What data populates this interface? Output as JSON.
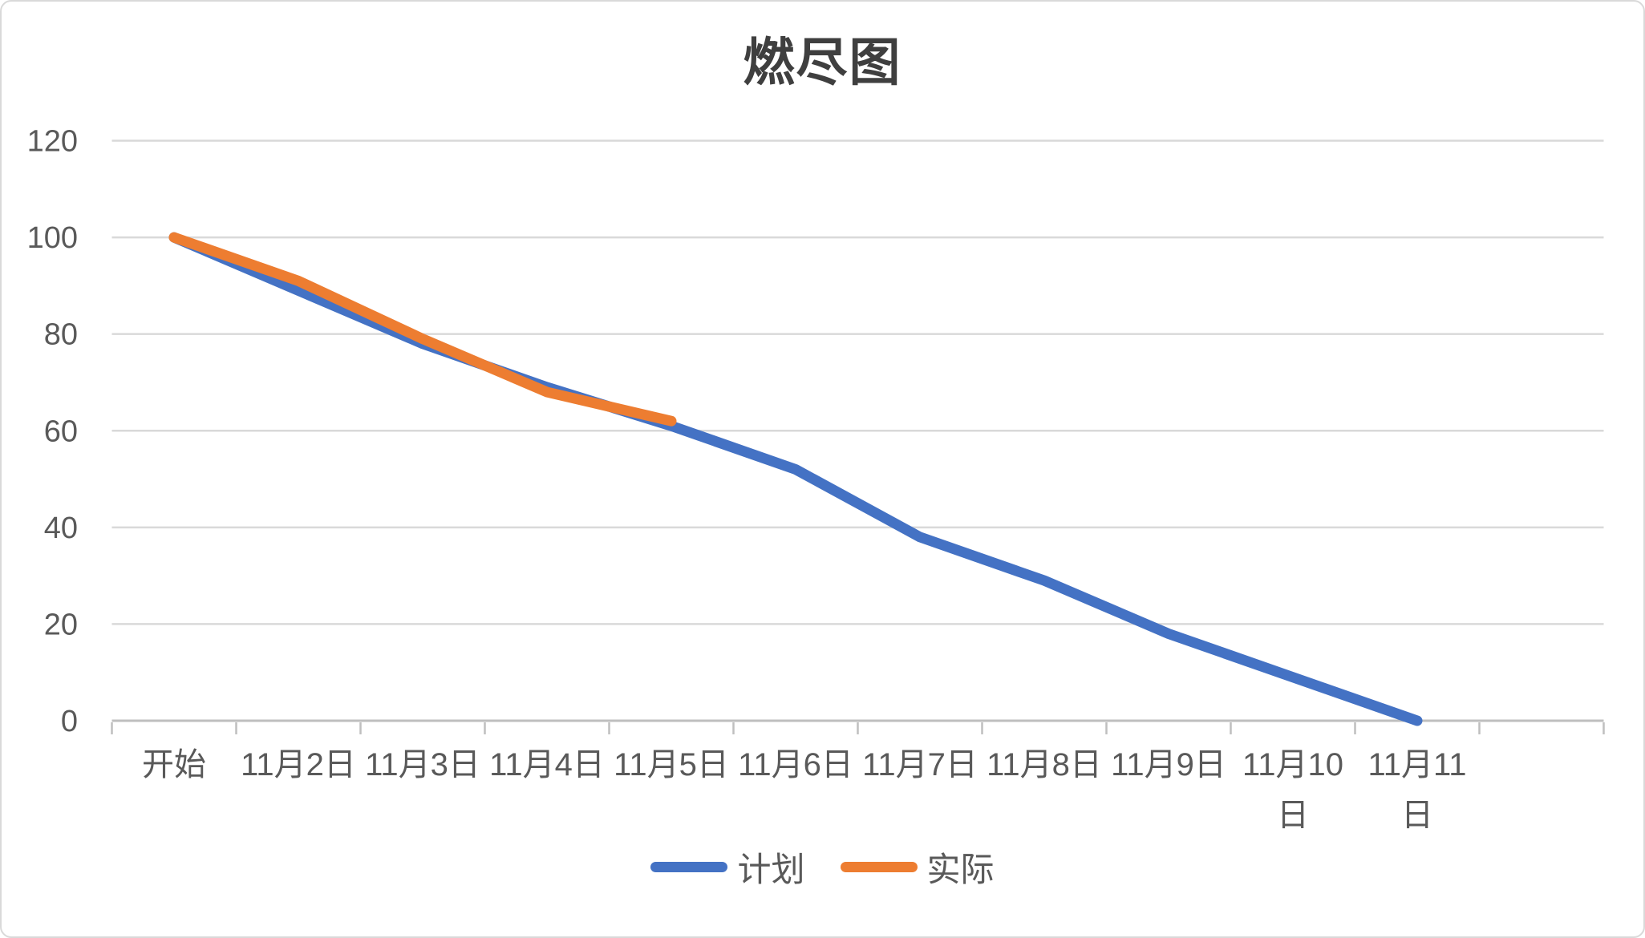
{
  "chart_data": {
    "type": "line",
    "title": "燃尽图",
    "categories": [
      "开始",
      "11月2日",
      "11月3日",
      "11月4日",
      "11月5日",
      "11月6日",
      "11月7日",
      "11月8日",
      "11月9日",
      "11月10日",
      "11月11日"
    ],
    "series": [
      {
        "id": "plan",
        "name": "计划",
        "color": "#4472C4",
        "values": [
          100,
          89,
          78,
          69,
          61,
          52,
          38,
          29,
          18,
          9,
          0
        ]
      },
      {
        "id": "actual",
        "name": "实际",
        "color": "#ED7D31",
        "values": [
          100,
          91,
          79,
          68,
          62
        ]
      }
    ],
    "y_axis": {
      "min": 0,
      "max": 120,
      "step": 20,
      "tick_labels": [
        "0",
        "20",
        "40",
        "60",
        "80",
        "100",
        "120"
      ]
    },
    "x_axis": {
      "extra_empty_slots": 1
    },
    "grid": true,
    "legend_position": "bottom",
    "colors": {
      "gridline": "#d9d9d9",
      "axis": "#bfbfbf",
      "label": "#595959",
      "title": "#3f3f3f"
    }
  }
}
